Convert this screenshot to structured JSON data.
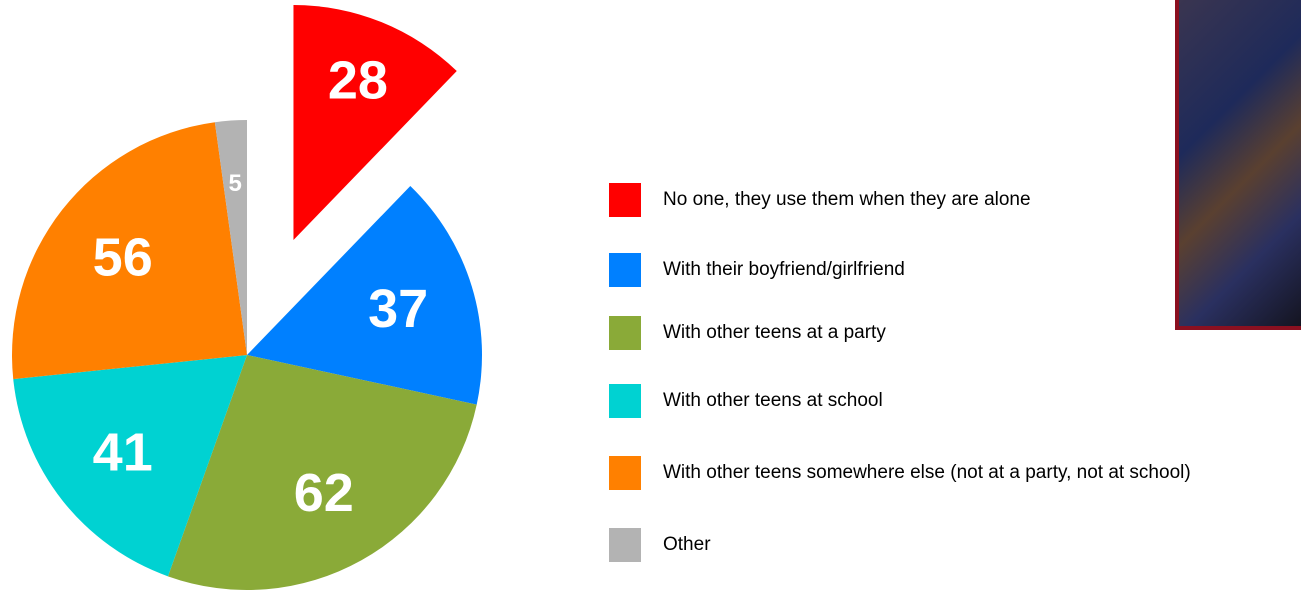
{
  "chart_data": {
    "type": "pie",
    "categories": [
      "No one, they use them when they are alone",
      "With their boyfriend/girlfriend",
      "With other teens at a party",
      "With other teens at school",
      "With other teens somewhere else (not at a party, not at school)",
      "Other"
    ],
    "values": [
      28,
      37,
      62,
      41,
      56,
      5
    ],
    "colors": [
      "#ff0000",
      "#0080ff",
      "#8aaa38",
      "#00d2d2",
      "#ff8000",
      "#b3b3b3"
    ],
    "exploded": [
      true,
      false,
      false,
      false,
      false,
      false
    ]
  }
}
